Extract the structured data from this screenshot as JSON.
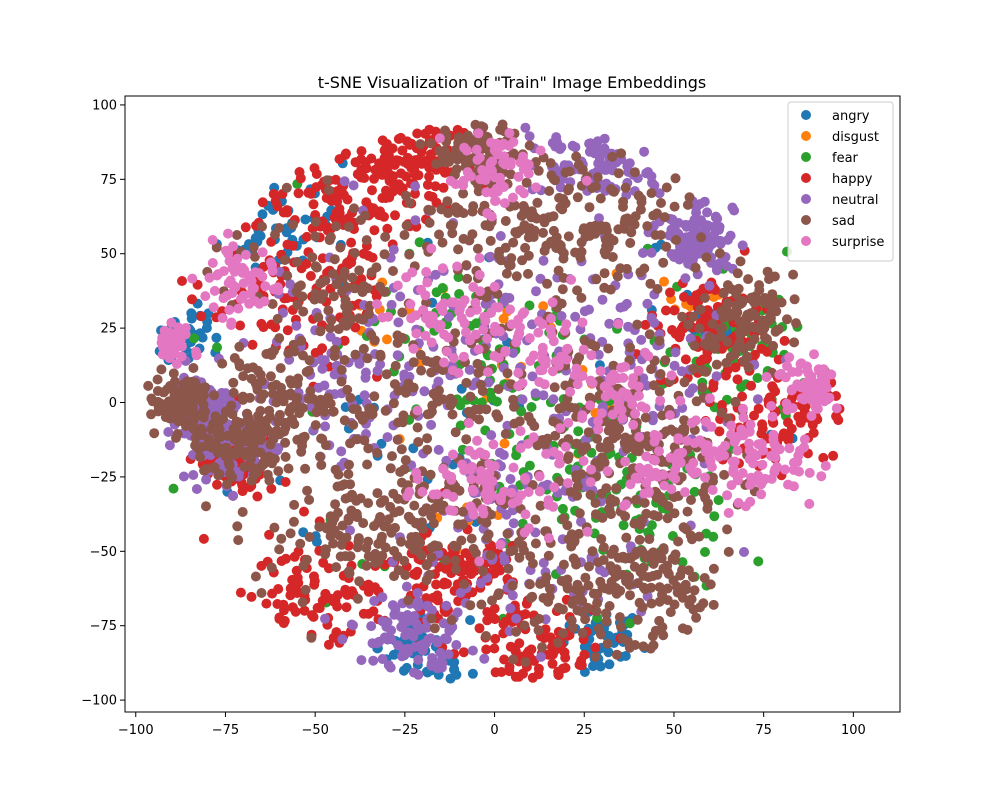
{
  "chart_data": {
    "type": "scatter",
    "title": "t-SNE Visualization of \"Train\" Image Embeddings",
    "xlabel": "",
    "ylabel": "",
    "xlim": [
      -103,
      113
    ],
    "ylim": [
      -104,
      103
    ],
    "xticks": [
      -100,
      -75,
      -50,
      -25,
      0,
      25,
      50,
      75,
      100
    ],
    "yticks": [
      -100,
      -75,
      -50,
      -25,
      0,
      25,
      50,
      75,
      100
    ],
    "grid": false,
    "legend_position": "top-right",
    "series": [
      {
        "name": "angry",
        "color": "#1f77b4",
        "count": 260,
        "clusters": [
          [
            -86,
            24,
            4
          ],
          [
            62,
            26,
            3
          ],
          [
            -60,
            60,
            8
          ],
          [
            0,
            0,
            40
          ],
          [
            30,
            -80,
            5
          ],
          [
            -20,
            -85,
            6
          ]
        ]
      },
      {
        "name": "disgust",
        "color": "#ff7f0e",
        "count": 50,
        "clusters": [
          [
            -30,
            30,
            10
          ],
          [
            30,
            -5,
            6
          ],
          [
            55,
            35,
            5
          ],
          [
            10,
            20,
            15
          ],
          [
            -10,
            -30,
            12
          ]
        ]
      },
      {
        "name": "fear",
        "color": "#2ca02c",
        "count": 260,
        "clusters": [
          [
            -5,
            20,
            15
          ],
          [
            20,
            -15,
            15
          ],
          [
            40,
            -40,
            12
          ],
          [
            70,
            20,
            10
          ],
          [
            0,
            0,
            40
          ]
        ]
      },
      {
        "name": "happy",
        "color": "#d62728",
        "count": 900,
        "clusters": [
          [
            -50,
            -65,
            12
          ],
          [
            -45,
            65,
            10
          ],
          [
            -25,
            80,
            8
          ],
          [
            80,
            -5,
            10
          ],
          [
            -72,
            -20,
            5
          ],
          [
            15,
            -85,
            8
          ],
          [
            -55,
            35,
            12
          ],
          [
            60,
            25,
            8
          ],
          [
            -10,
            -60,
            10
          ]
        ]
      },
      {
        "name": "neutral",
        "color": "#9467bd",
        "count": 900,
        "clusters": [
          [
            28,
            80,
            8
          ],
          [
            57,
            55,
            5
          ],
          [
            -75,
            -15,
            6
          ],
          [
            -82,
            0,
            4
          ],
          [
            -25,
            -80,
            8
          ],
          [
            0,
            30,
            25
          ],
          [
            -40,
            10,
            15
          ],
          [
            40,
            10,
            18
          ],
          [
            10,
            -40,
            18
          ]
        ]
      },
      {
        "name": "sad",
        "color": "#8c564b",
        "count": 1700,
        "clusters": [
          [
            -45,
            40,
            14
          ],
          [
            0,
            60,
            14
          ],
          [
            30,
            60,
            12
          ],
          [
            -40,
            -40,
            14
          ],
          [
            20,
            -60,
            14
          ],
          [
            40,
            -60,
            10
          ],
          [
            70,
            30,
            8
          ],
          [
            45,
            -20,
            12
          ],
          [
            -20,
            0,
            15
          ],
          [
            -70,
            -15,
            8
          ],
          [
            -60,
            0,
            10
          ],
          [
            30,
            0,
            15
          ],
          [
            -88,
            0,
            4
          ],
          [
            -5,
            85,
            5
          ],
          [
            -10,
            -40,
            12
          ]
        ]
      },
      {
        "name": "surprise",
        "color": "#e377c2",
        "count": 650,
        "clusters": [
          [
            12,
            20,
            9
          ],
          [
            12,
            -25,
            12
          ],
          [
            -15,
            30,
            8
          ],
          [
            35,
            5,
            6
          ],
          [
            88,
            5,
            5
          ],
          [
            -5,
            -25,
            7
          ],
          [
            75,
            -20,
            8
          ],
          [
            -70,
            40,
            6
          ],
          [
            50,
            -20,
            8
          ],
          [
            0,
            80,
            6
          ],
          [
            -90,
            20,
            3
          ]
        ]
      }
    ]
  }
}
